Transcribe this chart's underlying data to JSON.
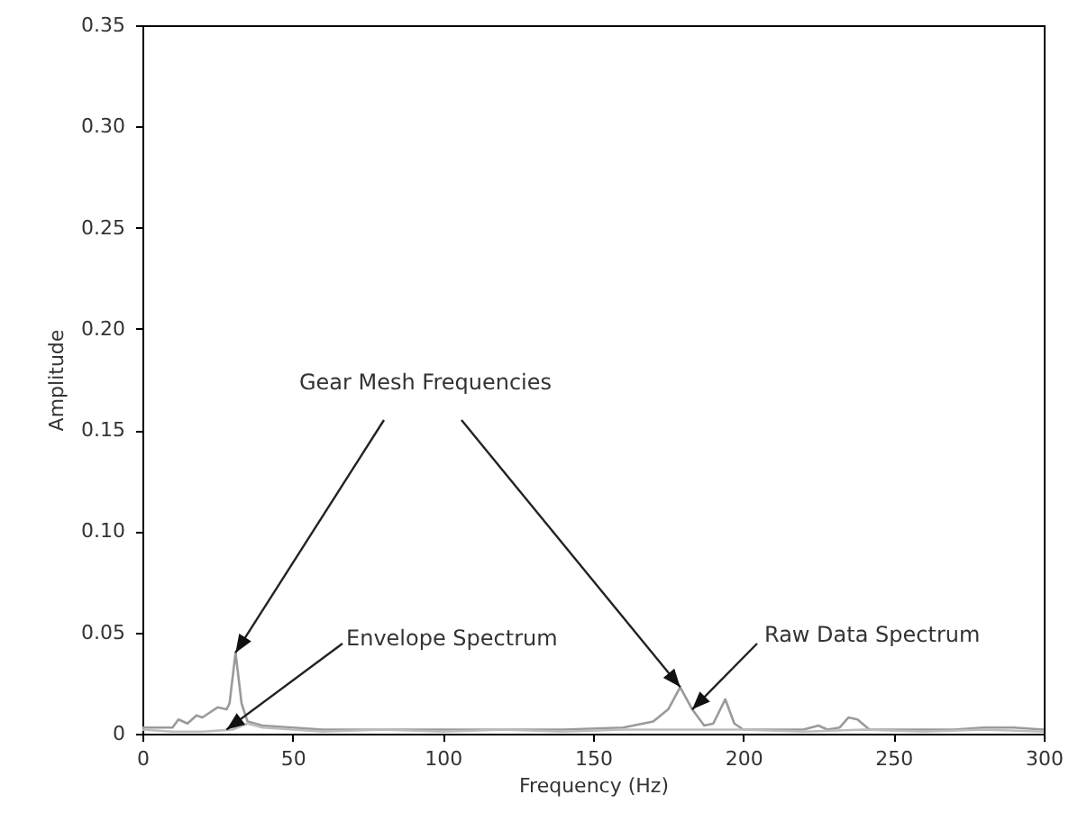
{
  "chart_data": {
    "type": "line",
    "xlabel": "Frequency (Hz)",
    "ylabel": "Amplitude",
    "xlim": [
      0,
      300
    ],
    "xticks": [
      0,
      50,
      100,
      150,
      200,
      250,
      300
    ],
    "ylim": [
      0,
      0.35
    ],
    "yticks": [
      0,
      0.05,
      {
        "value": 0.1,
        "label": "0.10"
      },
      0.15,
      {
        "value": 0.2,
        "label": "0.20"
      },
      0.25,
      {
        "value": 0.3,
        "label": "0.30"
      },
      0.35
    ],
    "grid": false,
    "annotations": [
      {
        "text": "Gear Mesh Frequencies",
        "x": 31,
        "y": 0.04
      },
      {
        "text": "Envelope Spectrum",
        "x": 28,
        "y": 0.002
      },
      {
        "text": "Raw Data Spectrum",
        "x": 183,
        "y": 0.012
      }
    ],
    "series": [
      {
        "color": "#9a9a9a",
        "x": [
          0,
          5,
          10,
          12,
          15,
          18,
          20,
          22,
          25,
          28,
          29,
          31,
          33,
          35,
          40,
          50,
          60,
          80,
          100,
          120,
          140,
          160,
          170,
          175,
          179,
          183,
          187,
          190,
          194,
          197,
          200,
          210,
          220,
          225,
          228,
          232,
          235,
          238,
          242,
          250,
          270,
          280,
          290,
          300
        ],
        "values": [
          0.003,
          0.003,
          0.003,
          0.007,
          0.005,
          0.009,
          0.008,
          0.01,
          0.013,
          0.012,
          0.015,
          0.04,
          0.015,
          0.006,
          0.004,
          0.003,
          0.002,
          0.002,
          0.002,
          0.002,
          0.002,
          0.003,
          0.006,
          0.012,
          0.023,
          0.012,
          0.004,
          0.005,
          0.017,
          0.005,
          0.002,
          0.002,
          0.002,
          0.004,
          0.002,
          0.003,
          0.008,
          0.007,
          0.002,
          0.002,
          0.002,
          0.003,
          0.003,
          0.002
        ]
      },
      {
        "color": "#bdbdbd",
        "x": [
          0,
          10,
          20,
          30,
          35,
          40,
          50,
          60,
          80,
          100,
          120,
          140,
          160,
          180,
          200,
          220,
          240,
          260,
          280,
          300
        ],
        "values": [
          0.002,
          0.001,
          0.001,
          0.002,
          0.005,
          0.003,
          0.002,
          0.001,
          0.002,
          0.001,
          0.002,
          0.001,
          0.002,
          0.002,
          0.002,
          0.001,
          0.002,
          0.001,
          0.002,
          0.001
        ]
      }
    ]
  }
}
